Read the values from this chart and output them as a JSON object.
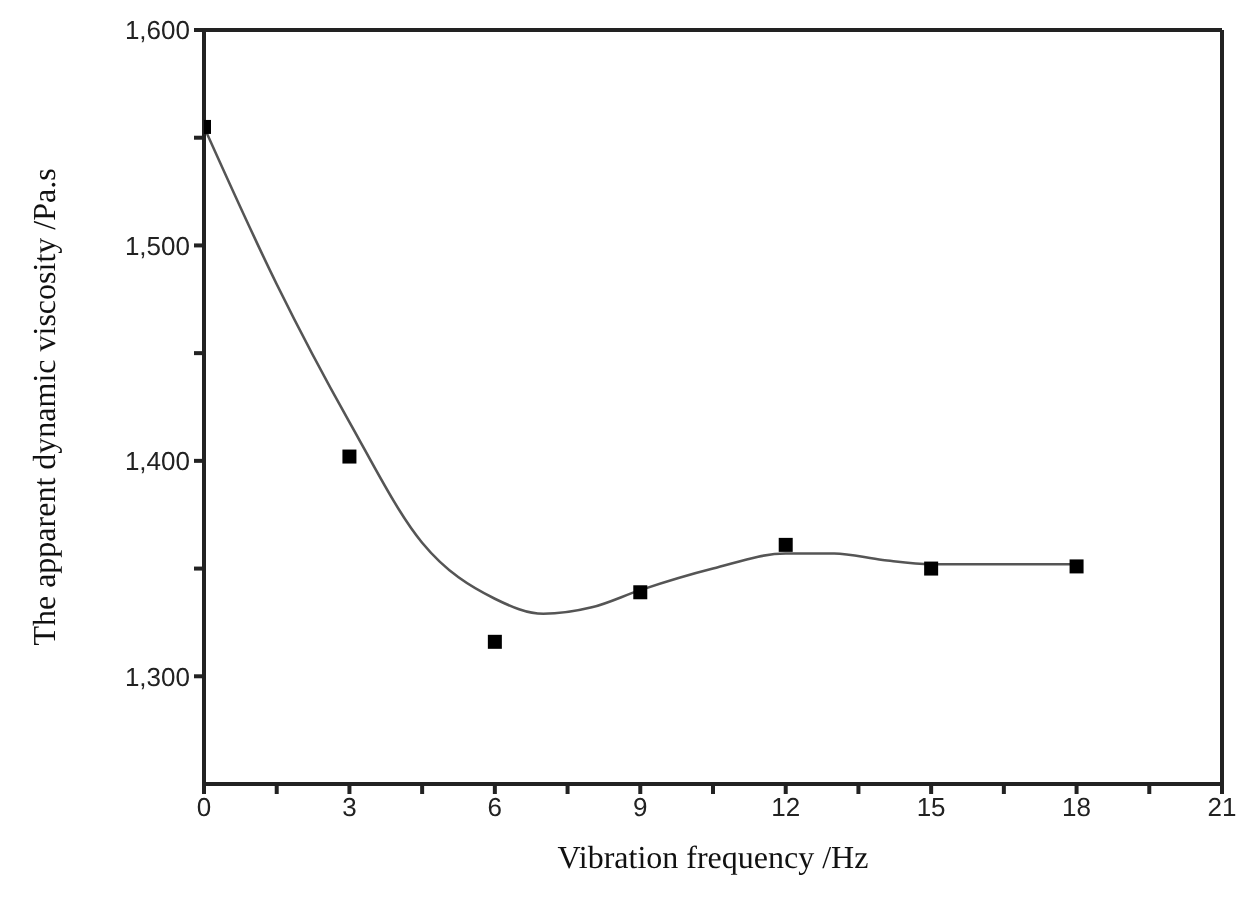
{
  "chart_data": {
    "type": "scatter",
    "xlabel": "Vibration frequency    /Hz",
    "ylabel": "The apparent dynamic viscosity    /Pa.s",
    "marker": "square",
    "x": [
      0,
      3,
      6,
      9,
      12,
      15,
      18
    ],
    "xlim": [
      0,
      21
    ],
    "xticks": [
      0,
      {
        "value": 1.5,
        "label": null
      },
      3,
      {
        "value": 4.5,
        "label": null
      },
      6,
      {
        "value": 7.5,
        "label": null
      },
      9,
      {
        "value": 10.5,
        "label": null
      },
      12,
      {
        "value": 13.5,
        "label": null
      },
      15,
      {
        "value": 16.5,
        "label": null
      },
      18,
      {
        "value": 19.5,
        "label": null
      },
      21
    ],
    "ylim": [
      1250,
      1600
    ],
    "yticks": [
      {
        "value": 1300,
        "label": "1,300"
      },
      {
        "value": 1350,
        "label": null
      },
      {
        "value": 1400,
        "label": "1,400"
      },
      {
        "value": 1450,
        "label": null
      },
      {
        "value": 1500,
        "label": "1,500"
      },
      {
        "value": 1550,
        "label": null
      },
      {
        "value": 1600,
        "label": "1,600"
      }
    ],
    "grid": false,
    "legend": false,
    "series": [
      {
        "color": "#000000",
        "values": [
          1555,
          1402,
          1316,
          1339,
          1361,
          1350,
          1351
        ]
      },
      {
        "type": "line",
        "color": "#555555",
        "marker": "none",
        "x": [
          0,
          1.5,
          3,
          4.5,
          6,
          7,
          8,
          9,
          10.5,
          12,
          13,
          14,
          15,
          16.5,
          18
        ],
        "values": [
          1555,
          1482,
          1418,
          1362,
          1336,
          1329,
          1332,
          1340,
          1350,
          1357,
          1357,
          1354,
          1352,
          1352,
          1352
        ]
      }
    ]
  }
}
